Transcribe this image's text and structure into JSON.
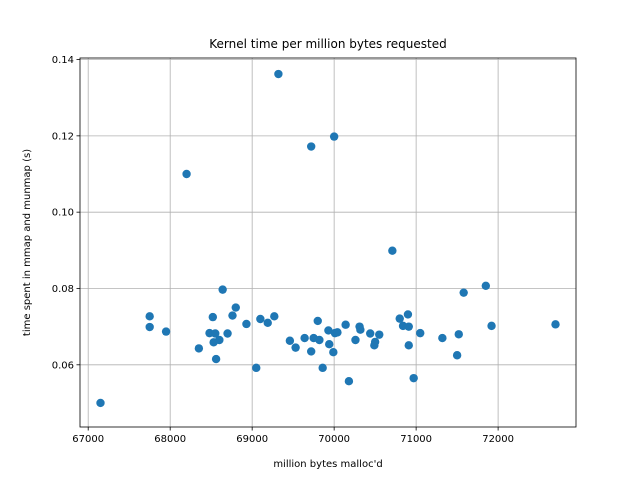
{
  "chart_data": {
    "type": "scatter",
    "title": "Kernel time per million bytes requested",
    "xlabel": "million bytes malloc'd",
    "ylabel": "time spent in mmap and munmap (s)",
    "xlim": [
      66900,
      72950
    ],
    "ylim": [
      0.0437,
      0.1404
    ],
    "xticks": [
      67000,
      68000,
      69000,
      70000,
      71000,
      72000
    ],
    "yticks": [
      0.06,
      0.08,
      0.1,
      0.12,
      0.14
    ],
    "ytick_labels": [
      "0.06",
      "0.08",
      "0.10",
      "0.12",
      "0.14"
    ],
    "xtick_labels": [
      "67000",
      "68000",
      "69000",
      "70000",
      "71000",
      "72000"
    ],
    "grid": true,
    "marker_color": "#1f77b4",
    "points": [
      [
        67150,
        0.05
      ],
      [
        67750,
        0.0727
      ],
      [
        67750,
        0.0699
      ],
      [
        67950,
        0.0687
      ],
      [
        68200,
        0.11
      ],
      [
        68350,
        0.0643
      ],
      [
        68480,
        0.0683
      ],
      [
        68520,
        0.0725
      ],
      [
        68530,
        0.0659
      ],
      [
        68550,
        0.0682
      ],
      [
        68560,
        0.0615
      ],
      [
        68600,
        0.0665
      ],
      [
        68640,
        0.0797
      ],
      [
        68700,
        0.0682
      ],
      [
        68760,
        0.0729
      ],
      [
        68800,
        0.075
      ],
      [
        68930,
        0.0707
      ],
      [
        69050,
        0.0592
      ],
      [
        69100,
        0.072
      ],
      [
        69190,
        0.071
      ],
      [
        69270,
        0.0727
      ],
      [
        69320,
        0.1362
      ],
      [
        69460,
        0.0663
      ],
      [
        69530,
        0.0645
      ],
      [
        69640,
        0.067
      ],
      [
        69720,
        0.0635
      ],
      [
        69720,
        0.1172
      ],
      [
        69750,
        0.067
      ],
      [
        69800,
        0.0715
      ],
      [
        69820,
        0.0665
      ],
      [
        69860,
        0.0592
      ],
      [
        69930,
        0.069
      ],
      [
        69940,
        0.0654
      ],
      [
        69990,
        0.0633
      ],
      [
        70000,
        0.1198
      ],
      [
        70010,
        0.0683
      ],
      [
        70040,
        0.0685
      ],
      [
        70140,
        0.0705
      ],
      [
        70180,
        0.0557
      ],
      [
        70260,
        0.0665
      ],
      [
        70310,
        0.07
      ],
      [
        70320,
        0.0692
      ],
      [
        70440,
        0.0682
      ],
      [
        70490,
        0.0651
      ],
      [
        70500,
        0.066
      ],
      [
        70550,
        0.0679
      ],
      [
        70710,
        0.0899
      ],
      [
        70800,
        0.0721
      ],
      [
        70840,
        0.0702
      ],
      [
        70900,
        0.0732
      ],
      [
        70910,
        0.0651
      ],
      [
        70910,
        0.07
      ],
      [
        70970,
        0.0565
      ],
      [
        71050,
        0.0683
      ],
      [
        71320,
        0.067
      ],
      [
        71500,
        0.0625
      ],
      [
        71520,
        0.068
      ],
      [
        71580,
        0.0789
      ],
      [
        71850,
        0.0807
      ],
      [
        71920,
        0.0702
      ],
      [
        72700,
        0.0706
      ]
    ]
  }
}
